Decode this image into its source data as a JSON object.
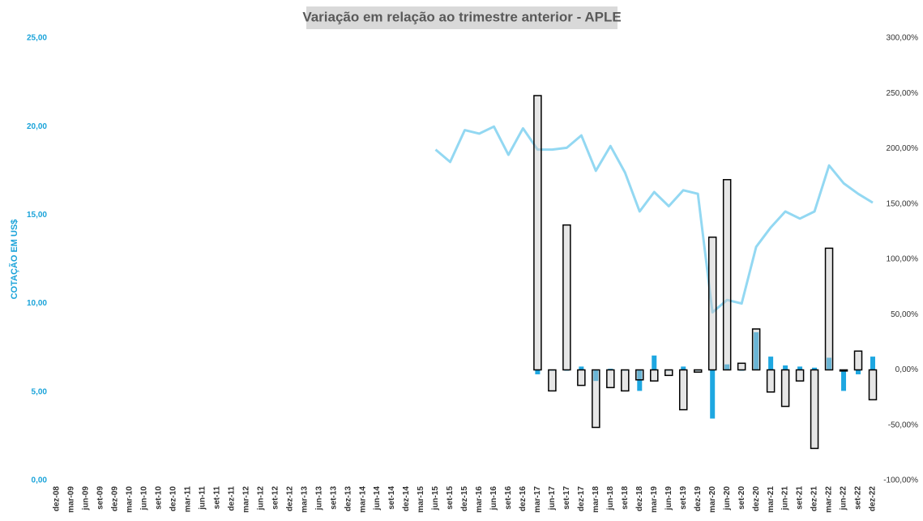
{
  "chart_data": {
    "type": "combo",
    "title": "Variação em relação ao trimestre anterior - APLE",
    "y_label": "COTAÇÃO EM US$",
    "categories": [
      "dez-08",
      "mar-09",
      "jun-09",
      "set-09",
      "dez-09",
      "mar-10",
      "jun-10",
      "set-10",
      "dez-10",
      "mar-11",
      "jun-11",
      "set-11",
      "dez-11",
      "mar-12",
      "jun-12",
      "set-12",
      "dez-12",
      "mar-13",
      "jun-13",
      "set-13",
      "dez-13",
      "mar-14",
      "jun-14",
      "set-14",
      "dez-14",
      "mar-15",
      "jun-15",
      "set-15",
      "dez-15",
      "mar-16",
      "jun-16",
      "set-16",
      "dez-16",
      "mar-17",
      "jun-17",
      "set-17",
      "dez-17",
      "mar-18",
      "jun-18",
      "set-18",
      "dez-18",
      "mar-19",
      "jun-19",
      "set-19",
      "dez-19",
      "mar-20",
      "jun-20",
      "set-20",
      "dez-20",
      "mar-21",
      "jun-21",
      "set-21",
      "dez-21",
      "mar-22",
      "jun-22",
      "set-22",
      "dez-22"
    ],
    "series": [
      {
        "type": "line",
        "color": "#93d8f2",
        "axis": "y",
        "values": [
          null,
          null,
          null,
          null,
          null,
          null,
          null,
          null,
          null,
          null,
          null,
          null,
          null,
          null,
          null,
          null,
          null,
          null,
          null,
          null,
          null,
          null,
          null,
          null,
          null,
          null,
          18.7,
          18.0,
          19.8,
          19.6,
          20.0,
          18.4,
          19.9,
          18.7,
          18.7,
          18.8,
          19.5,
          17.5,
          18.9,
          17.4,
          15.2,
          16.3,
          15.5,
          16.4,
          16.2,
          9.5,
          10.2,
          10.0,
          13.2,
          14.3,
          15.2,
          14.8,
          15.2,
          17.8,
          16.8,
          16.2,
          15.7
        ]
      },
      {
        "type": "bar",
        "color": "#1ea7e1",
        "axis": "y2",
        "values": [
          null,
          null,
          null,
          null,
          null,
          null,
          null,
          null,
          null,
          null,
          null,
          null,
          null,
          null,
          null,
          null,
          null,
          null,
          null,
          null,
          null,
          null,
          null,
          null,
          null,
          null,
          null,
          null,
          null,
          null,
          null,
          null,
          null,
          -4,
          0,
          0,
          3,
          -10,
          1,
          0,
          -19,
          13,
          0,
          3,
          0,
          -44,
          5,
          0,
          34,
          12,
          4,
          3,
          2,
          11,
          -19,
          -4,
          12
        ]
      },
      {
        "type": "bar",
        "color": "#000000",
        "axis": "y2",
        "values": [
          null,
          null,
          null,
          null,
          null,
          null,
          null,
          null,
          null,
          null,
          null,
          null,
          null,
          null,
          null,
          null,
          null,
          null,
          null,
          null,
          null,
          null,
          null,
          null,
          null,
          null,
          null,
          null,
          null,
          null,
          null,
          null,
          null,
          248,
          -19,
          131,
          -14,
          -52,
          -16,
          -19,
          -9,
          -10,
          -5,
          -36,
          -2,
          120,
          172,
          6,
          37,
          -20,
          -33,
          -10,
          -71,
          110,
          -1,
          17,
          -27
        ]
      }
    ],
    "ylim": [
      0,
      25
    ],
    "yticks": [
      {
        "value": 0,
        "label": "0,00"
      },
      {
        "value": 5,
        "label": "5,00"
      },
      {
        "value": 10,
        "label": "10,00"
      },
      {
        "value": 15,
        "label": "15,00"
      },
      {
        "value": 20,
        "label": "20,00"
      },
      {
        "value": 25,
        "label": "25,00"
      }
    ],
    "y2lim": [
      -100,
      300
    ],
    "y2ticks": [
      {
        "value": -100,
        "label": "-100,00%"
      },
      {
        "value": -50,
        "label": "-50,00%"
      },
      {
        "value": 0,
        "label": "0,00%"
      },
      {
        "value": 50,
        "label": "50,00%"
      },
      {
        "value": 100,
        "label": "100,00%"
      },
      {
        "value": 150,
        "label": "150,00%"
      },
      {
        "value": 200,
        "label": "200,00%"
      },
      {
        "value": 250,
        "label": "250,00%"
      },
      {
        "value": 300,
        "label": "300,00%"
      }
    ]
  }
}
